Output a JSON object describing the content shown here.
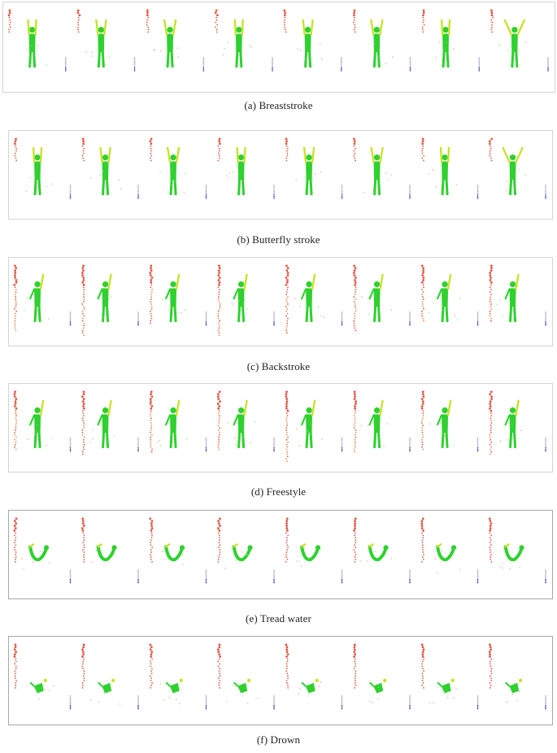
{
  "figure": {
    "panels": [
      {
        "id": "breaststroke",
        "caption": "(a) Breaststroke",
        "pose": "arms-up"
      },
      {
        "id": "butterfly",
        "caption": "(b) Butterfly stroke",
        "pose": "arms-up"
      },
      {
        "id": "backstroke",
        "caption": "(c) Backstroke",
        "pose": "one-arm"
      },
      {
        "id": "freestyle",
        "caption": "(d) Freestyle",
        "pose": "one-arm"
      },
      {
        "id": "tread-water",
        "caption": "(e) Tread water",
        "pose": "curled"
      },
      {
        "id": "drown",
        "caption": "(f) Drown",
        "pose": "small"
      }
    ],
    "frames_per_panel": 8,
    "colors": {
      "body": "#2ed12e",
      "highlight": "#c9e22a",
      "column_hot": "#d8361e",
      "column_warm": "#e6782a",
      "depth_marker": "#2b3a9a"
    }
  }
}
